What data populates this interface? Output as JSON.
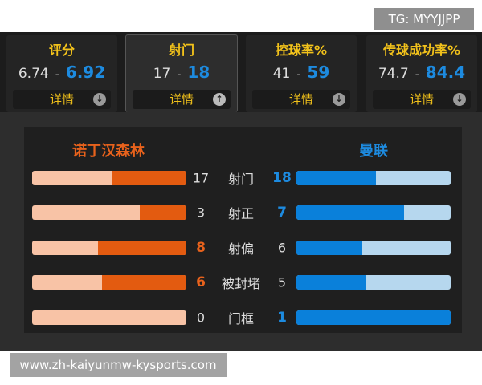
{
  "watermark_top": "TG: MYYJJPP",
  "separator": "-",
  "tabs": [
    {
      "title": "评分",
      "home": 6.74,
      "away": 6.92,
      "button": "详情",
      "active": false
    },
    {
      "title": "射门",
      "home": 17,
      "away": 18,
      "button": "详情",
      "active": true
    },
    {
      "title": "控球率%",
      "home": 41,
      "away": 59,
      "button": "详情",
      "active": false
    },
    {
      "title": "传球成功率%",
      "home": 74.7,
      "away": 84.4,
      "button": "详情",
      "active": false
    }
  ],
  "teams": {
    "home": "诺丁汉森林",
    "away": "曼联"
  },
  "stats": [
    {
      "label": "射门",
      "home": 17,
      "away": 18
    },
    {
      "label": "射正",
      "home": 3,
      "away": 7
    },
    {
      "label": "射偏",
      "home": 8,
      "away": 6
    },
    {
      "label": "被封堵",
      "home": 6,
      "away": 5
    },
    {
      "label": "门框",
      "home": 0,
      "away": 1
    }
  ],
  "watermark_bottom": "www.zh-kaiyunmw-kysports.com"
}
